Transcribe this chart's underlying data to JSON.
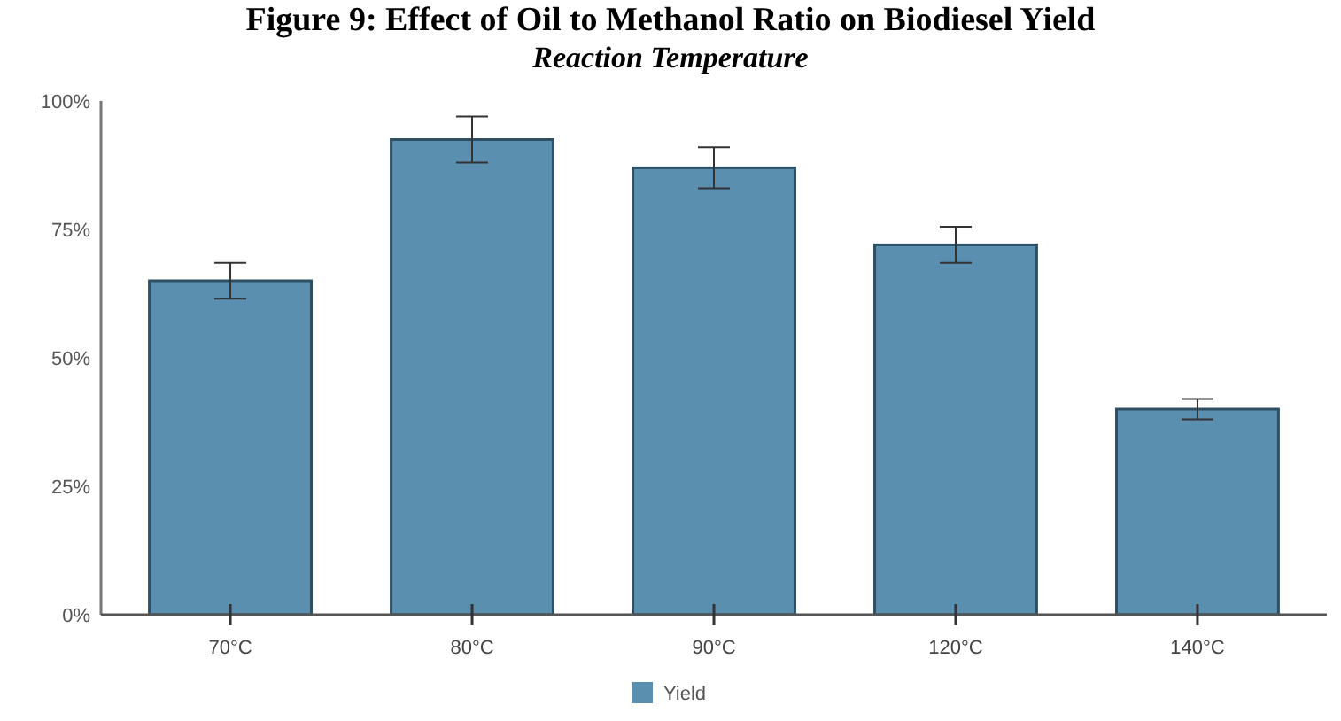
{
  "chart_data": {
    "type": "bar",
    "title": "Figure 9: Effect of Oil to Methanol Ratio on Biodiesel Yield",
    "subtitle": "Reaction Temperature",
    "categories": [
      "70°C",
      "80°C",
      "90°C",
      "120°C",
      "140°C"
    ],
    "series": [
      {
        "name": "Yield",
        "color": "#5a8fb0",
        "values": [
          65,
          92.5,
          87,
          72,
          40
        ],
        "errors": [
          3.5,
          4.5,
          4,
          3.5,
          2
        ]
      }
    ],
    "ylim": [
      0,
      100
    ],
    "yticks": [
      {
        "value": 0,
        "label": "0%"
      },
      {
        "value": 25,
        "label": "25%"
      },
      {
        "value": 50,
        "label": "50%"
      },
      {
        "value": 75,
        "label": "75%"
      },
      {
        "value": 100,
        "label": "100%"
      }
    ],
    "legend": "bottom",
    "grid": false
  }
}
